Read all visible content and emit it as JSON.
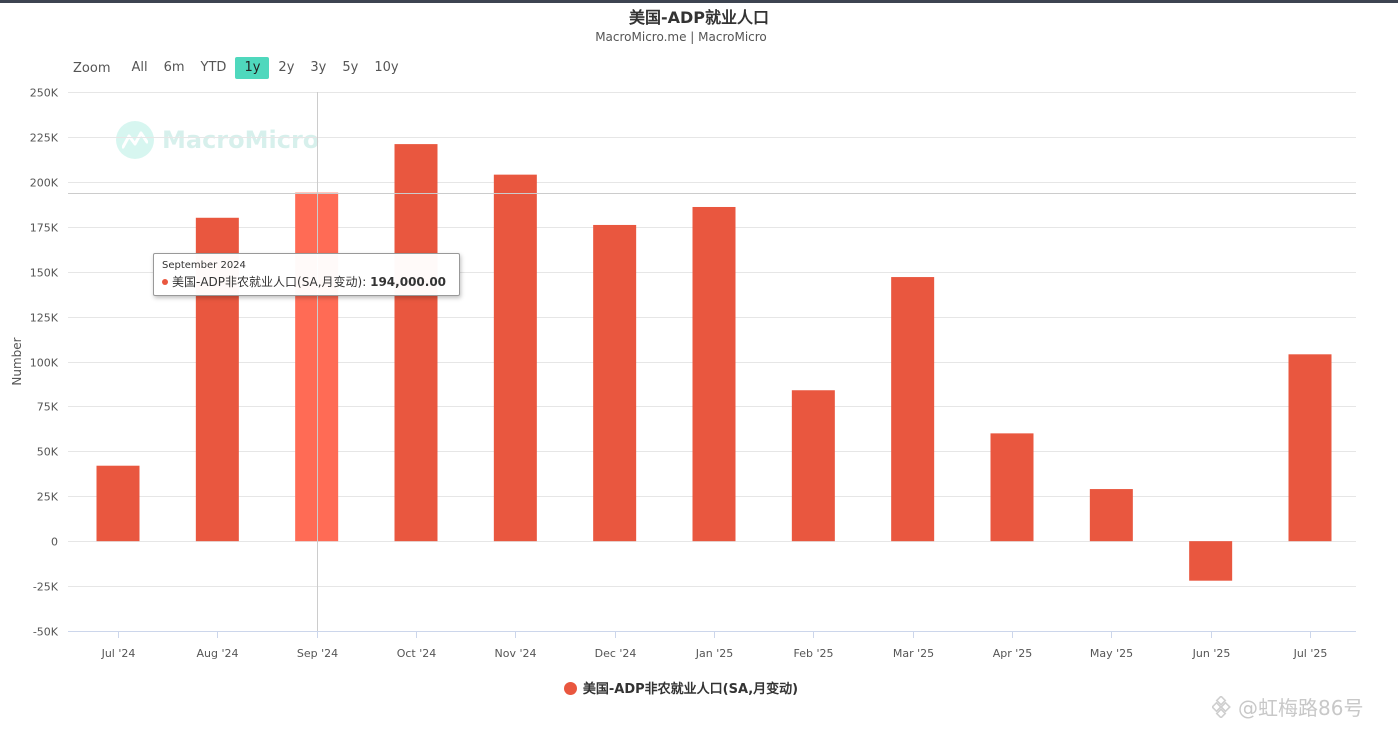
{
  "header": {
    "title": "美国-ADP就业人口",
    "subtitle": "MacroMicro.me | MacroMicro"
  },
  "zoom": {
    "label": "Zoom",
    "options": [
      "All",
      "6m",
      "YTD",
      "1y",
      "2y",
      "3y",
      "5y",
      "10y"
    ],
    "selected": "1y"
  },
  "watermark": {
    "brand": "MacroMicro"
  },
  "chart_data": {
    "type": "bar",
    "title": "美国-ADP就业人口",
    "subtitle": "MacroMicro.me | MacroMicro",
    "ylabel": "Number",
    "ylim": [
      -50000,
      250000
    ],
    "yticks": [
      -50000,
      -25000,
      0,
      25000,
      50000,
      75000,
      100000,
      125000,
      150000,
      175000,
      200000,
      225000,
      250000
    ],
    "ytick_labels": [
      "-50K",
      "-25K",
      "0",
      "25K",
      "50K",
      "75K",
      "100K",
      "125K",
      "150K",
      "175K",
      "200K",
      "225K",
      "250K"
    ],
    "categories": [
      "Jul '24",
      "Aug '24",
      "Sep '24",
      "Oct '24",
      "Nov '24",
      "Dec '24",
      "Jan '25",
      "Feb '25",
      "Mar '25",
      "Apr '25",
      "May '25",
      "Jun '25",
      "Jul '25"
    ],
    "series": [
      {
        "name": "美国-ADP非农就业人口(SA,月变动)",
        "color": "#e9573f",
        "values": [
          42000,
          180000,
          194000,
          221000,
          204000,
          176000,
          186000,
          84000,
          147000,
          60000,
          29000,
          -22000,
          104000
        ]
      }
    ],
    "highlight_color": "#ff6b55",
    "grid": true,
    "legend_position": "bottom-center",
    "crosshair": {
      "category": "Sep '24",
      "value": 194000
    },
    "tooltip": {
      "date": "September 2024",
      "series_name": "美国-ADP非农就业人口(SA,月变动)",
      "value_text": "194,000.00"
    }
  },
  "corner_watermark": {
    "text": "@虹梅路86号"
  }
}
